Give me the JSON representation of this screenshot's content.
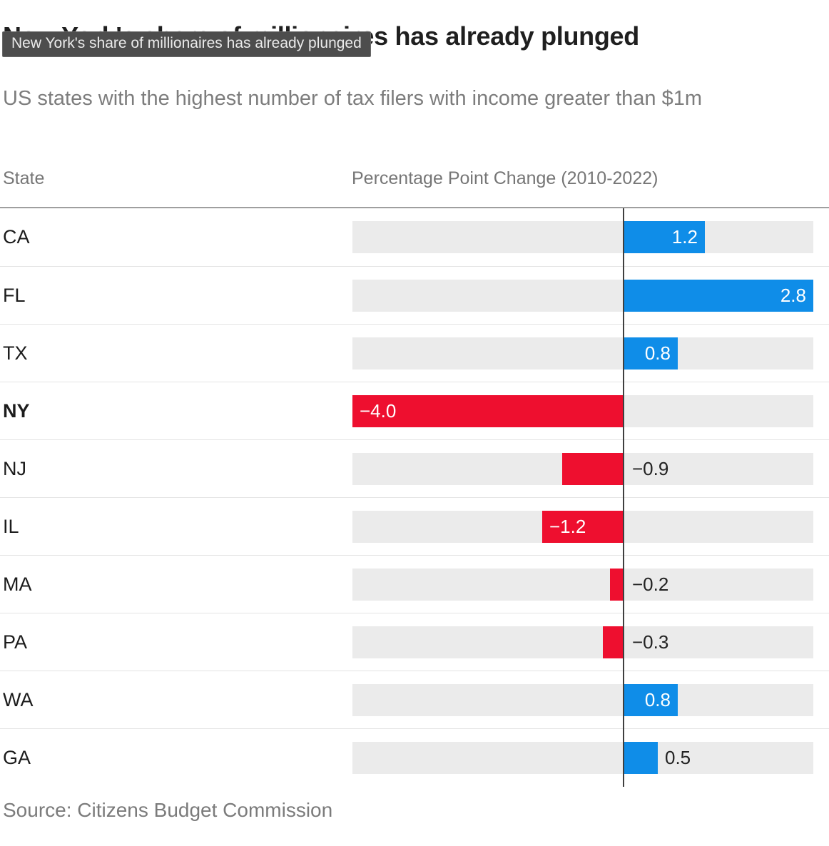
{
  "header": {
    "title": "New York's share of millionaires has already plunged",
    "subtitle": "US states with the highest number of tax filers with income greater than $1m"
  },
  "tooltip": {
    "text": "New York's share of millionaires has already plunged"
  },
  "columns": {
    "state": "State",
    "change": "Percentage Point Change (2010-2022)"
  },
  "footer": {
    "source": "Source: Citizens Budget Commission"
  },
  "chart_data": {
    "type": "bar",
    "orientation": "horizontal",
    "title": "New York's share of millionaires has already plunged",
    "subtitle": "US states with the highest number of tax filers with income greater than $1m",
    "xlabel": "Percentage Point Change (2010-2022)",
    "ylabel": "State",
    "xlim": [
      -4.0,
      2.8
    ],
    "grid": false,
    "legend": "none",
    "categories": [
      "CA",
      "FL",
      "TX",
      "NY",
      "NJ",
      "IL",
      "MA",
      "PA",
      "WA",
      "GA"
    ],
    "values": [
      1.2,
      2.8,
      0.8,
      -4.0,
      -0.9,
      -1.2,
      -0.2,
      -0.3,
      0.8,
      0.5
    ],
    "rows": [
      {
        "state": "CA",
        "value": 1.2,
        "label": "1.2",
        "label_position": "inside",
        "highlight": false
      },
      {
        "state": "FL",
        "value": 2.8,
        "label": "2.8",
        "label_position": "inside",
        "highlight": false
      },
      {
        "state": "TX",
        "value": 0.8,
        "label": "0.8",
        "label_position": "inside",
        "highlight": false
      },
      {
        "state": "NY",
        "value": -4.0,
        "label": "−4.0",
        "label_position": "inside",
        "highlight": true
      },
      {
        "state": "NJ",
        "value": -0.9,
        "label": "−0.9",
        "label_position": "outside",
        "highlight": false
      },
      {
        "state": "IL",
        "value": -1.2,
        "label": "−1.2",
        "label_position": "inside",
        "highlight": false
      },
      {
        "state": "MA",
        "value": -0.2,
        "label": "−0.2",
        "label_position": "outside",
        "highlight": false
      },
      {
        "state": "PA",
        "value": -0.3,
        "label": "−0.3",
        "label_position": "outside",
        "highlight": false
      },
      {
        "state": "WA",
        "value": 0.8,
        "label": "0.8",
        "label_position": "inside",
        "highlight": false
      },
      {
        "state": "GA",
        "value": 0.5,
        "label": "0.5",
        "label_position": "outside",
        "highlight": false
      }
    ],
    "colors": {
      "positive": "#0f8de8",
      "negative": "#ee0f2f",
      "track": "#ebebeb",
      "zero_line": "#3f3f3f",
      "inside_label": "#ffffff",
      "outside_label": "#222222"
    }
  }
}
